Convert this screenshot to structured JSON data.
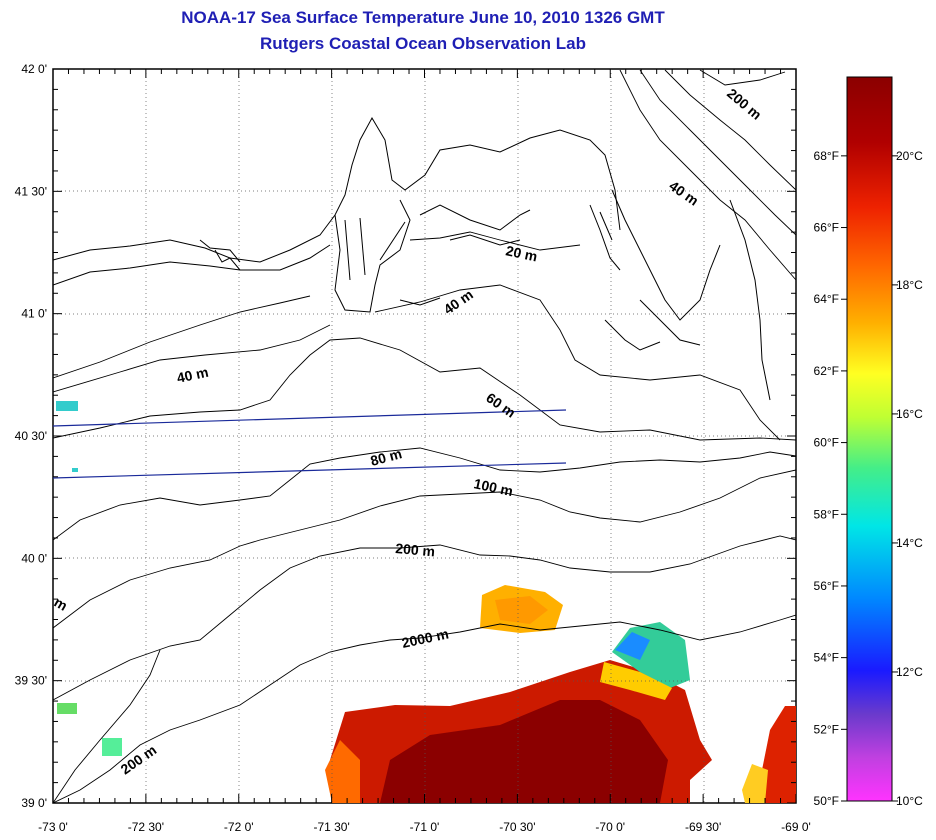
{
  "title": "NOAA-17 Sea Surface Temperature June 10, 2010 1326 GMT",
  "subtitle": "Rutgers Coastal Ocean Observation Lab",
  "map": {
    "lon_ticks": [
      "-73 0'",
      "-72 30'",
      "-72 0'",
      "-71 30'",
      "-71 0'",
      "-70 30'",
      "-70 0'",
      "-69 30'",
      "-69 0'"
    ],
    "lat_ticks": [
      "42 0'",
      "41 30'",
      "41 0'",
      "40 30'",
      "40 0'",
      "39 30'",
      "39 0'"
    ],
    "lon_range": [
      -73,
      -69
    ],
    "lat_range": [
      39,
      42
    ],
    "contour_labels": [
      "200 m",
      "40 m",
      "20 m",
      "40 m",
      "40 m",
      "60 m",
      "80 m",
      "100 m",
      "200 m",
      "m",
      "2000 m",
      "200 m"
    ]
  },
  "colorbar": {
    "fahrenheit_labels": [
      "68°F",
      "66°F",
      "64°F",
      "62°F",
      "60°F",
      "58°F",
      "56°F",
      "54°F",
      "52°F",
      "50°F"
    ],
    "celsius_labels": [
      "20°C",
      "18°C",
      "16°C",
      "14°C",
      "12°C",
      "10°C"
    ],
    "colors": [
      "#ff33ff",
      "#8a3ad6",
      "#1a1aff",
      "#0088ff",
      "#00e6e6",
      "#44ee88",
      "#bfff33",
      "#ffff22",
      "#ffb000",
      "#ff6600",
      "#ee2200",
      "#b00000",
      "#8b0000"
    ]
  }
}
